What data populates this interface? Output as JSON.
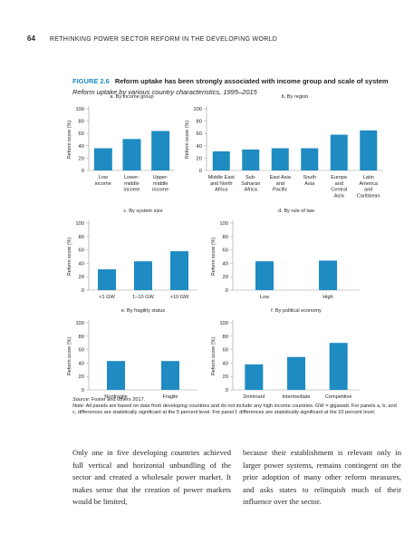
{
  "header": {
    "page_number": "64",
    "running_title": "RETHINKING POWER SECTOR REFORM IN THE DEVELOPING WORLD"
  },
  "figure": {
    "label": "FIGURE 2.6",
    "title": "Reform uptake has been strongly associated with income group and scale of system",
    "subtitle": "Reform uptake by various country characteristics, 1995–2015"
  },
  "colors": {
    "bar": "#1e8bc3",
    "axis": "#9a9a9a",
    "text": "#231f20"
  },
  "chart_data": [
    {
      "type": "bar",
      "title": "a. By income group",
      "ylabel": "Reform score (%)",
      "ylim": [
        0,
        100
      ],
      "yticks": [
        0,
        20,
        40,
        60,
        80,
        100
      ],
      "categories": [
        "Low\nincome",
        "Lower-\nmiddle\nincome",
        "Upper-\nmiddle\nincome"
      ],
      "values": [
        36,
        51,
        64
      ]
    },
    {
      "type": "bar",
      "title": "b. By region",
      "ylabel": "Reform score (%)",
      "ylim": [
        0,
        100
      ],
      "yticks": [
        0,
        20,
        40,
        60,
        80,
        100
      ],
      "categories": [
        "Middle East\nand North\nAfrica",
        "Sub-\nSaharan\nAfrica",
        "East Asia\nand\nPacific",
        "South\nAsia",
        "Europe\nand\nCentral\nAsia",
        "Latin\nAmerica\nand\nCaribbean"
      ],
      "values": [
        31,
        34,
        36,
        36,
        58,
        65
      ]
    },
    {
      "type": "bar",
      "title": "c. By system size",
      "ylabel": "Reform score (%)",
      "ylim": [
        0,
        100
      ],
      "yticks": [
        0,
        20,
        40,
        60,
        80,
        100
      ],
      "categories": [
        "<1 GW",
        "1–10 GW",
        ">10 GW"
      ],
      "values": [
        31,
        43,
        58
      ]
    },
    {
      "type": "bar",
      "title": "d. By rule of law",
      "ylabel": "Reform score (%)",
      "ylim": [
        0,
        100
      ],
      "yticks": [
        0,
        20,
        40,
        60,
        80,
        100
      ],
      "categories": [
        "Low",
        "High"
      ],
      "values": [
        43,
        44
      ]
    },
    {
      "type": "bar",
      "title": "e. By fragility status",
      "ylabel": "Reform score (%)",
      "ylim": [
        0,
        100
      ],
      "yticks": [
        0,
        20,
        40,
        60,
        80,
        100
      ],
      "categories": [
        "Nonfragile",
        "Fragile"
      ],
      "values": [
        43,
        43
      ]
    },
    {
      "type": "bar",
      "title": "f. By political economy",
      "ylabel": "Reform score (%)",
      "ylim": [
        0,
        100
      ],
      "yticks": [
        0,
        20,
        40,
        60,
        80,
        100
      ],
      "categories": [
        "Dominant",
        "Intermediate",
        "Competitive"
      ],
      "values": [
        38,
        49,
        70
      ]
    }
  ],
  "source": {
    "source_label": "Source:",
    "source_text": "Foster and others 2017.",
    "note_label": "Note:",
    "note_text": "All panels are based on data from developing countries and do not include any high income countries. GW = gigawatt. For panels a, b, and c, differences are statistically significant at the 5 percent level. For panel f, differences are statistically significant at the 10 percent level."
  },
  "body": {
    "col1": "Only one in five developing countries achieved full vertical and horizontal unbundling of the sector and created a wholesale power market. It makes sense that the creation of power markets would be limited,",
    "col2": "because their establishment is relevant only in larger power systems, remains contingent on the prior adoption of many other reform measures, and asks states to relinquish much of their influence over the sector."
  }
}
